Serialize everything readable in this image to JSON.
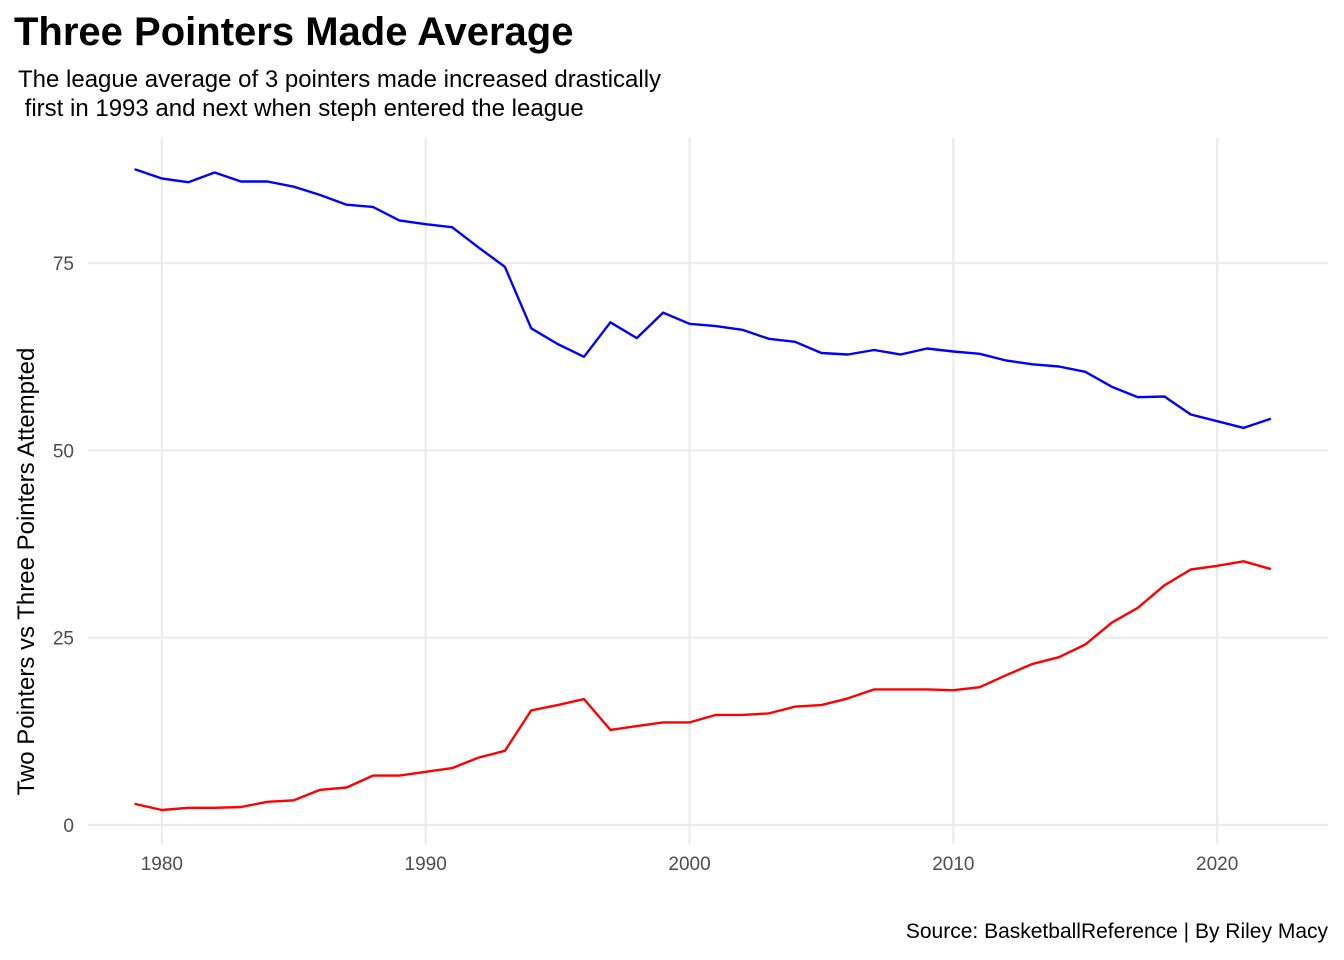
{
  "chart_data": {
    "type": "line",
    "title": "Three Pointers Made Average",
    "subtitle_lines": [
      "The league average of 3 pointers made increased drastically",
      " first in 1993 and next when steph entered the league"
    ],
    "caption": "Source: BasketballReference | By Riley Macy",
    "xlabel": "",
    "ylabel": "Two Pointers vs Three Pointers Attempted",
    "xlim": [
      1977.2,
      2024.2
    ],
    "ylim": [
      0,
      88.5
    ],
    "x_ticks": [
      1980,
      1990,
      2000,
      2010,
      2020
    ],
    "y_ticks": [
      0,
      25,
      50,
      75
    ],
    "grid": true,
    "legend": "none",
    "x": [
      1979,
      1980,
      1981,
      1982,
      1983,
      1984,
      1985,
      1986,
      1987,
      1988,
      1989,
      1990,
      1991,
      1992,
      1993,
      1994,
      1995,
      1996,
      1997,
      1998,
      1999,
      2000,
      2001,
      2002,
      2003,
      2004,
      2005,
      2006,
      2007,
      2008,
      2009,
      2010,
      2011,
      2012,
      2013,
      2014,
      2015,
      2016,
      2017,
      2018,
      2019,
      2020,
      2021,
      2022
    ],
    "series": [
      {
        "color": "#0000ff",
        "values": [
          87.5,
          86.3,
          85.8,
          87.1,
          85.9,
          85.9,
          85.2,
          84.1,
          82.8,
          82.5,
          80.7,
          80.2,
          79.8,
          77.1,
          74.5,
          66.3,
          64.2,
          62.5,
          67.1,
          65.0,
          68.4,
          66.9,
          66.6,
          66.1,
          64.9,
          64.5,
          63.0,
          62.8,
          63.4,
          62.8,
          63.6,
          63.2,
          62.9,
          62.0,
          61.5,
          61.2,
          60.5,
          58.5,
          57.1,
          57.2,
          54.8,
          53.9,
          53.0,
          54.2
        ]
      },
      {
        "color": "#ff0000",
        "values": [
          2.8,
          2.0,
          2.3,
          2.3,
          2.4,
          3.1,
          3.3,
          4.7,
          5.0,
          6.6,
          6.6,
          7.1,
          7.6,
          9.0,
          9.9,
          15.3,
          16.0,
          16.8,
          12.7,
          13.2,
          13.7,
          13.7,
          14.7,
          14.7,
          14.9,
          15.8,
          16.0,
          16.9,
          18.1,
          18.1,
          18.1,
          18.0,
          18.4,
          20.0,
          21.5,
          22.4,
          24.1,
          27.0,
          29.0,
          32.0,
          34.1,
          34.6,
          35.2,
          34.2
        ]
      }
    ]
  }
}
